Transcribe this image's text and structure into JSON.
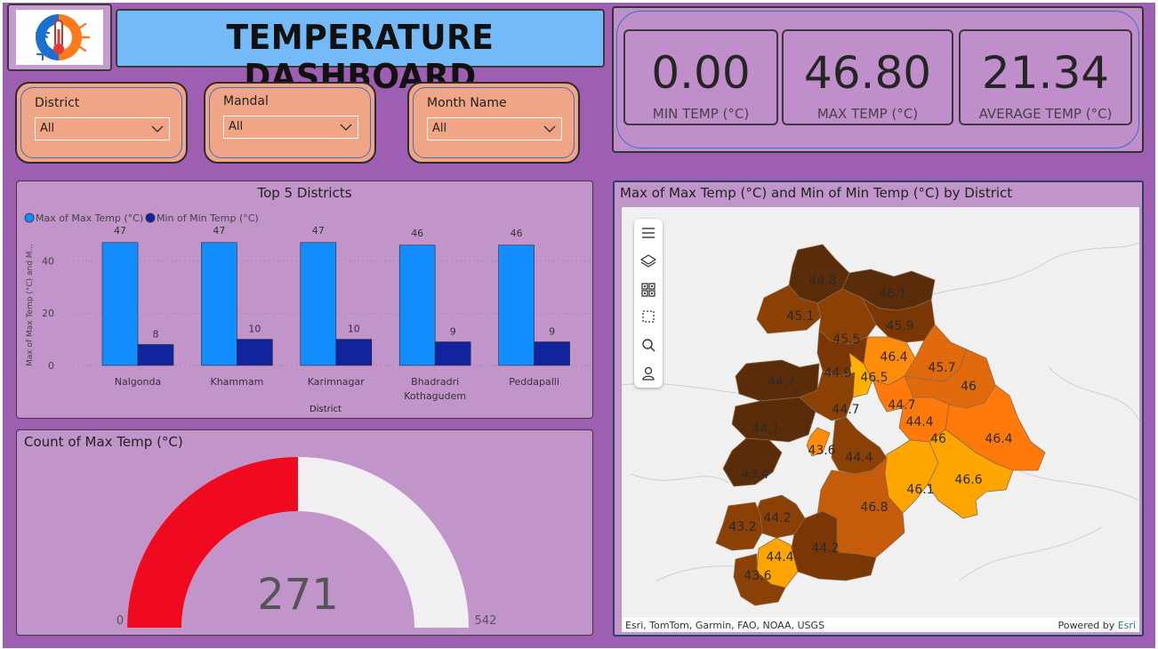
{
  "header": {
    "title": "TEMPERATURE DASHBOARD",
    "logo_icon": "thermometer-sun-snowflake-icon"
  },
  "filters": [
    {
      "label": "District",
      "value": "All"
    },
    {
      "label": "Mandal",
      "value": "All"
    },
    {
      "label": "Month Name",
      "value": "All"
    }
  ],
  "kpis": [
    {
      "value": "0.00",
      "label": "MIN TEMP (°C)"
    },
    {
      "value": "46.80",
      "label": "MAX TEMP (°C)"
    },
    {
      "value": "21.34",
      "label": "AVERAGE TEMP (°C)"
    }
  ],
  "bar_panel": {
    "title": "Top 5 Districts",
    "legend": [
      "Max of Max Temp (°C)",
      "Min of Min Temp (°C)"
    ],
    "ylabel": "Max of Max Temp (°C) and M...",
    "xlabel": "District"
  },
  "gauge_panel": {
    "title": "Count of Max Temp (°C)",
    "value_label": "271",
    "min_label": "0",
    "max_label": "542"
  },
  "map_panel": {
    "title": "Max of Max Temp (°C) and Min of Min Temp (°C) by District",
    "toolbar": [
      "menu-icon",
      "layers-icon",
      "qr-select-icon",
      "rect-select-icon",
      "search-icon",
      "person-icon"
    ],
    "attribution": "Esri, TomTom, Garmin, FAO, NOAA, USGS",
    "powered_by": "Powered by",
    "powered_link": "Esri",
    "region_labels": [
      "44.8",
      "46.1",
      "45.1",
      "45.9",
      "45.5",
      "46.4",
      "45.7",
      "44.9",
      "46.5",
      "44.7",
      "46",
      "44.7",
      "44.7",
      "44.4",
      "44.1",
      "46",
      "46.4",
      "43.6",
      "44.4",
      "43.4",
      "46.1",
      "46.6",
      "46.8",
      "44.2",
      "43.2",
      "44.2",
      "44.4",
      "43.6"
    ]
  },
  "colors": {
    "background": "#9e5fb2",
    "max_series": "#118dff",
    "min_series": "#12239e",
    "gauge_fill": "#f00a1f",
    "gauge_rest": "#f2eff2"
  },
  "chart_data": [
    {
      "type": "bar",
      "title": "Top 5 Districts",
      "categories": [
        "Nalgonda",
        "Khammam",
        "Karimnagar",
        "Bhadradri Kothagudem",
        "Peddapalli"
      ],
      "series": [
        {
          "name": "Max of Max Temp (°C)",
          "values": [
            47,
            47,
            47,
            46,
            46
          ]
        },
        {
          "name": "Min of Min Temp (°C)",
          "values": [
            8,
            10,
            10,
            9,
            9
          ]
        }
      ],
      "xlabel": "District",
      "ylabel": "Max of Max Temp (°C) and M...",
      "yticks": [
        "0",
        "20",
        "40"
      ],
      "ylim": [
        0,
        50
      ],
      "legend": "top-left",
      "grid": true
    },
    {
      "type": "gauge",
      "title": "Count of Max Temp (°C)",
      "value": 271,
      "min": 0,
      "max": 542
    }
  ]
}
